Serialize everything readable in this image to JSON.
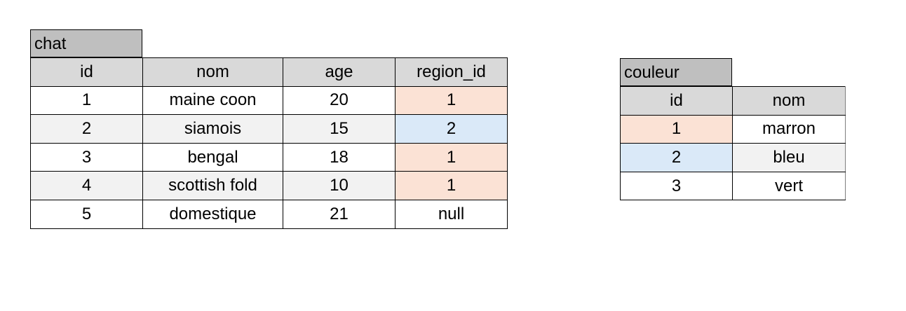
{
  "tables": {
    "chat": {
      "title": "chat",
      "columns": [
        "id",
        "nom",
        "age",
        "region_id"
      ],
      "rows": [
        [
          "1",
          "maine coon",
          "20",
          "1"
        ],
        [
          "2",
          "siamois",
          "15",
          "2"
        ],
        [
          "3",
          "bengal",
          "18",
          "1"
        ],
        [
          "4",
          "scottish fold",
          "10",
          "1"
        ],
        [
          "5",
          "domestique",
          "21",
          "null"
        ]
      ]
    },
    "couleur": {
      "title": "couleur",
      "columns": [
        "id",
        "nom"
      ],
      "rows": [
        [
          "1",
          "marron"
        ],
        [
          "2",
          "bleu"
        ],
        [
          "3",
          "vert"
        ]
      ]
    }
  },
  "colors": {
    "header_fill": "#d9d9d9",
    "title_fill": "#bfbfbf",
    "row_alt_fill": "#f2f2f2",
    "highlight_peach": "#fbe2d5",
    "highlight_blue": "#dae9f8"
  }
}
